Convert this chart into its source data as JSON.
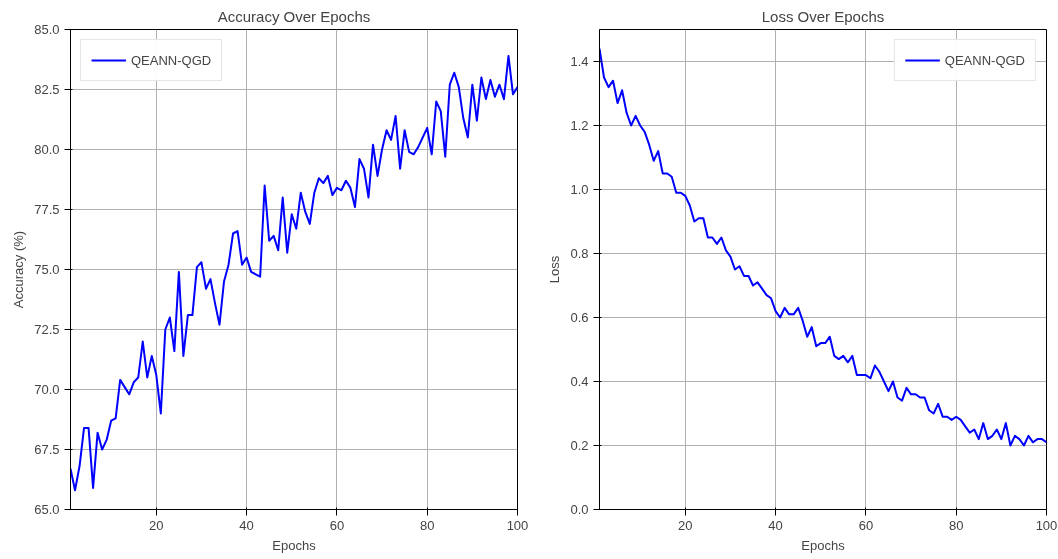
{
  "chart_data": [
    {
      "type": "line",
      "title": "Accuracy Over Epochs",
      "xlabel": "Epochs",
      "ylabel": "Accuracy (%)",
      "legend": "top left",
      "grid": true,
      "x": [
        1,
        2,
        3,
        4,
        5,
        6,
        7,
        8,
        9,
        10,
        11,
        12,
        13,
        14,
        15,
        16,
        17,
        18,
        19,
        20,
        21,
        22,
        23,
        24,
        25,
        26,
        27,
        28,
        29,
        30,
        31,
        32,
        33,
        34,
        35,
        36,
        37,
        38,
        39,
        40,
        41,
        42,
        43,
        44,
        45,
        46,
        47,
        48,
        49,
        50,
        51,
        52,
        53,
        54,
        55,
        56,
        57,
        58,
        59,
        60,
        61,
        62,
        63,
        64,
        65,
        66,
        67,
        68,
        69,
        70,
        71,
        72,
        73,
        74,
        75,
        76,
        77,
        78,
        79,
        80,
        81,
        82,
        83,
        84,
        85,
        86,
        87,
        88,
        89,
        90,
        91,
        92,
        93,
        94,
        95,
        96,
        97,
        98,
        99,
        100
      ],
      "xlim": [
        1,
        100
      ],
      "xticks": [
        20,
        40,
        60,
        80,
        100
      ],
      "ylim": [
        65,
        85
      ],
      "yticks": [
        {
          "value": 65,
          "label": "65.0"
        },
        {
          "value": 67.5,
          "label": "67.5"
        },
        {
          "value": 70,
          "label": "70.0"
        },
        {
          "value": 72.5,
          "label": "72.5"
        },
        {
          "value": 75,
          "label": "75.0"
        },
        {
          "value": 77.5,
          "label": "77.5"
        },
        {
          "value": 80,
          "label": "80.0"
        },
        {
          "value": 82.5,
          "label": "82.5"
        },
        {
          "value": 85,
          "label": "85.0"
        }
      ],
      "series": [
        {
          "name": "QEANN-QGD",
          "color": "#0000ff",
          "values": [
            66.7,
            65.8,
            66.8,
            68.4,
            68.4,
            65.9,
            68.2,
            67.5,
            67.9,
            68.7,
            68.8,
            70.4,
            70.1,
            69.8,
            70.3,
            70.5,
            72.0,
            70.5,
            71.4,
            70.6,
            69.0,
            72.5,
            73.0,
            71.6,
            74.9,
            71.4,
            73.1,
            73.1,
            75.1,
            75.3,
            74.2,
            74.6,
            73.6,
            72.7,
            74.5,
            75.2,
            76.5,
            76.6,
            75.2,
            75.5,
            74.9,
            74.8,
            74.7,
            78.5,
            76.2,
            76.4,
            75.8,
            78.0,
            75.7,
            77.3,
            76.7,
            78.2,
            77.4,
            76.9,
            78.2,
            78.8,
            78.6,
            78.9,
            78.1,
            78.4,
            78.3,
            78.7,
            78.4,
            77.6,
            79.6,
            79.2,
            78.0,
            80.2,
            78.9,
            80.0,
            80.8,
            80.4,
            81.4,
            79.2,
            80.8,
            79.9,
            79.8,
            80.1,
            80.5,
            80.9,
            79.8,
            82.0,
            81.6,
            79.7,
            82.7,
            83.2,
            82.6,
            81.3,
            80.5,
            82.7,
            81.2,
            83.0,
            82.1,
            82.9,
            82.2,
            82.7,
            82.1,
            83.9,
            82.3,
            82.6
          ]
        }
      ]
    },
    {
      "type": "line",
      "title": "Loss Over Epochs",
      "xlabel": "Epochs",
      "ylabel": "Loss",
      "legend": "top right",
      "grid": true,
      "x": [
        1,
        2,
        3,
        4,
        5,
        6,
        7,
        8,
        9,
        10,
        11,
        12,
        13,
        14,
        15,
        16,
        17,
        18,
        19,
        20,
        21,
        22,
        23,
        24,
        25,
        26,
        27,
        28,
        29,
        30,
        31,
        32,
        33,
        34,
        35,
        36,
        37,
        38,
        39,
        40,
        41,
        42,
        43,
        44,
        45,
        46,
        47,
        48,
        49,
        50,
        51,
        52,
        53,
        54,
        55,
        56,
        57,
        58,
        59,
        60,
        61,
        62,
        63,
        64,
        65,
        66,
        67,
        68,
        69,
        70,
        71,
        72,
        73,
        74,
        75,
        76,
        77,
        78,
        79,
        80,
        81,
        82,
        83,
        84,
        85,
        86,
        87,
        88,
        89,
        90,
        91,
        92,
        93,
        94,
        95,
        96,
        97,
        98,
        99,
        100
      ],
      "xlim": [
        1,
        100
      ],
      "xticks": [
        20,
        40,
        60,
        80,
        100
      ],
      "ylim": [
        0,
        1.5
      ],
      "yticks": [
        {
          "value": 0,
          "label": "0.0"
        },
        0.2,
        0.4,
        0.6,
        0.8,
        {
          "value": 1,
          "label": "1.0"
        },
        1.2,
        1.4
      ],
      "series": [
        {
          "name": "QEANN-QGD",
          "color": "#0000ff",
          "values": [
            1.44,
            1.35,
            1.32,
            1.34,
            1.27,
            1.31,
            1.24,
            1.2,
            1.23,
            1.2,
            1.18,
            1.14,
            1.09,
            1.12,
            1.05,
            1.05,
            1.04,
            0.99,
            0.99,
            0.98,
            0.95,
            0.9,
            0.91,
            0.91,
            0.85,
            0.85,
            0.83,
            0.85,
            0.81,
            0.79,
            0.75,
            0.76,
            0.73,
            0.73,
            0.7,
            0.71,
            0.69,
            0.67,
            0.66,
            0.62,
            0.6,
            0.63,
            0.61,
            0.61,
            0.63,
            0.59,
            0.54,
            0.57,
            0.51,
            0.52,
            0.52,
            0.54,
            0.48,
            0.47,
            0.48,
            0.46,
            0.48,
            0.42,
            0.42,
            0.42,
            0.41,
            0.45,
            0.43,
            0.4,
            0.37,
            0.4,
            0.35,
            0.34,
            0.38,
            0.36,
            0.36,
            0.35,
            0.35,
            0.31,
            0.3,
            0.33,
            0.29,
            0.29,
            0.28,
            0.29,
            0.28,
            0.26,
            0.24,
            0.25,
            0.22,
            0.27,
            0.22,
            0.23,
            0.25,
            0.22,
            0.27,
            0.2,
            0.23,
            0.22,
            0.2,
            0.23,
            0.21,
            0.22,
            0.22,
            0.21
          ]
        }
      ]
    }
  ]
}
